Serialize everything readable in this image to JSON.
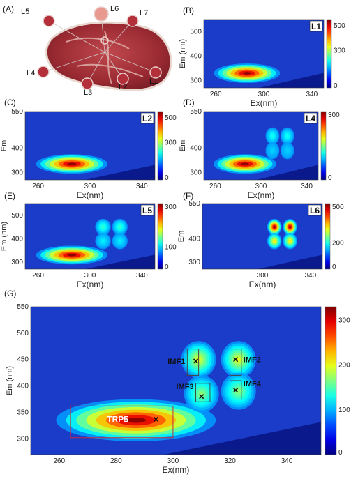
{
  "photo": {
    "label": "(A)",
    "locations": [
      "L5",
      "L6",
      "L7",
      "L4",
      "L3",
      "L2",
      "L1"
    ]
  },
  "chart_data": [
    {
      "panel": "(B)",
      "type": "heatmap",
      "tag": "L1",
      "xlabel": "Ex(nm)",
      "ylabel": "Em (nm)",
      "xticks": [
        260,
        300,
        340
      ],
      "yticks": [
        300,
        400,
        500
      ],
      "xlim": [
        250,
        350
      ],
      "ylim": [
        270,
        550
      ],
      "colorbar": {
        "ticks": [
          0,
          300,
          500
        ],
        "range": [
          0,
          550
        ]
      },
      "peaks": [
        {
          "ex": 292,
          "em": 330,
          "value": 550
        }
      ]
    },
    {
      "panel": "(C)",
      "type": "heatmap",
      "tag": "L2",
      "xlabel": "Ex(nm)",
      "ylabel": "Em",
      "xticks": [
        260,
        300,
        340
      ],
      "yticks": [
        300,
        400,
        550
      ],
      "xlim": [
        250,
        350
      ],
      "ylim": [
        270,
        550
      ],
      "colorbar": {
        "ticks": [
          0,
          300,
          500
        ],
        "range": [
          0,
          550
        ]
      },
      "peaks": [
        {
          "ex": 292,
          "em": 335,
          "value": 550
        }
      ]
    },
    {
      "panel": "(D)",
      "type": "heatmap",
      "tag": "L4",
      "xlabel": "Ex(nm)",
      "ylabel": "Em",
      "xticks": [
        260,
        300,
        340
      ],
      "yticks": [
        300,
        400,
        550
      ],
      "xlim": [
        250,
        350
      ],
      "ylim": [
        270,
        550
      ],
      "colorbar": {
        "ticks": [
          0,
          300
        ],
        "range": [
          0,
          300
        ]
      },
      "peaks": [
        {
          "ex": 292,
          "em": 335,
          "value": 300
        },
        {
          "ex": 310,
          "em": 450,
          "value": 120
        },
        {
          "ex": 323,
          "em": 450,
          "value": 120
        },
        {
          "ex": 310,
          "em": 390,
          "value": 100
        },
        {
          "ex": 323,
          "em": 390,
          "value": 100
        }
      ]
    },
    {
      "panel": "(E)",
      "type": "heatmap",
      "tag": "L5",
      "xlabel": "Ex(nm)",
      "ylabel": "Em (nm)",
      "xticks": [
        260,
        300,
        340
      ],
      "yticks": [
        300,
        400,
        500
      ],
      "xlim": [
        250,
        350
      ],
      "ylim": [
        270,
        550
      ],
      "colorbar": {
        "ticks": [
          0,
          100,
          300
        ],
        "range": [
          0,
          300
        ]
      },
      "peaks": [
        {
          "ex": 292,
          "em": 330,
          "value": 300
        },
        {
          "ex": 310,
          "em": 450,
          "value": 130
        },
        {
          "ex": 323,
          "em": 450,
          "value": 130
        },
        {
          "ex": 310,
          "em": 390,
          "value": 110
        },
        {
          "ex": 323,
          "em": 390,
          "value": 110
        }
      ]
    },
    {
      "panel": "(F)",
      "type": "heatmap",
      "tag": "L6",
      "xlabel": "Ex(nm)",
      "ylabel": "Em",
      "xticks": [
        300,
        340
      ],
      "yticks": [
        300,
        400,
        550
      ],
      "xlim": [
        250,
        350
      ],
      "ylim": [
        270,
        550
      ],
      "colorbar": {
        "ticks": [
          0,
          200,
          500
        ],
        "range": [
          0,
          500
        ]
      },
      "peaks": [
        {
          "ex": 310,
          "em": 450,
          "value": 500
        },
        {
          "ex": 323,
          "em": 450,
          "value": 500
        },
        {
          "ex": 310,
          "em": 390,
          "value": 330
        },
        {
          "ex": 323,
          "em": 390,
          "value": 330
        }
      ]
    },
    {
      "panel": "(G)",
      "type": "heatmap",
      "xlabel": "Ex(nm)",
      "ylabel": "Em (nm)",
      "xticks": [
        260,
        280,
        300,
        320,
        340
      ],
      "yticks": [
        300,
        350,
        400,
        450,
        500,
        550
      ],
      "xlim": [
        250,
        352
      ],
      "ylim": [
        270,
        550
      ],
      "colorbar": {
        "ticks": [
          0,
          100,
          200,
          300
        ],
        "range": [
          0,
          330
        ]
      },
      "peaks": [
        {
          "ex": 293,
          "em": 335,
          "value": 330
        },
        {
          "ex": 309,
          "em": 450,
          "value": 200
        },
        {
          "ex": 323,
          "em": 450,
          "value": 200
        },
        {
          "ex": 310,
          "em": 385,
          "value": 170
        },
        {
          "ex": 323,
          "em": 390,
          "value": 170
        }
      ],
      "regions": [
        {
          "label": "TRP5",
          "ex": [
            264,
            300
          ],
          "em": [
            302,
            362
          ],
          "marker": [
            294,
            337
          ]
        },
        {
          "label": "IMF1",
          "ex": [
            305,
            309
          ],
          "em": [
            420,
            470
          ],
          "marker": [
            308,
            447
          ]
        },
        {
          "label": "IMF2",
          "ex": [
            320,
            324
          ],
          "em": [
            420,
            470
          ],
          "marker": [
            322,
            450
          ]
        },
        {
          "label": "IMF3",
          "ex": [
            308,
            313
          ],
          "em": [
            370,
            405
          ],
          "marker": [
            310,
            380
          ]
        },
        {
          "label": "IMF4",
          "ex": [
            320,
            324
          ],
          "em": [
            375,
            410
          ],
          "marker": [
            322,
            392
          ]
        }
      ]
    }
  ]
}
